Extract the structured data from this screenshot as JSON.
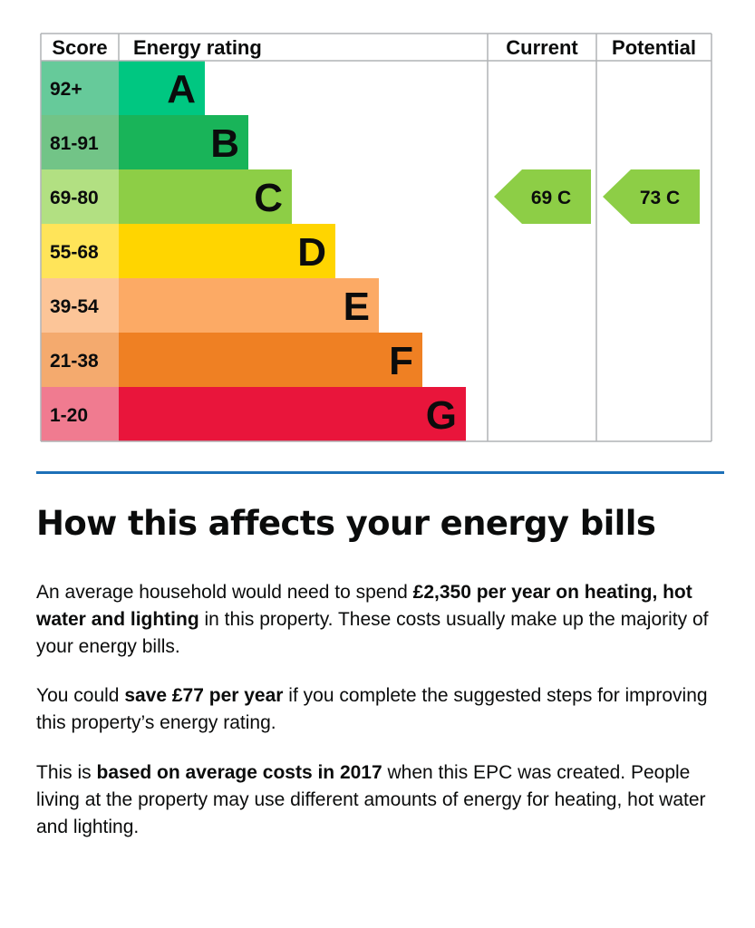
{
  "chart_data": {
    "type": "bar",
    "title": "",
    "headers": {
      "score": "Score",
      "rating": "Energy rating",
      "current": "Current",
      "potential": "Potential"
    },
    "bands": [
      {
        "score": "92+",
        "letter": "A",
        "band_color": "#00c781",
        "score_color": "#66ca9a",
        "letter_color": "#0b0c0c",
        "bar_value": 1
      },
      {
        "score": "81-91",
        "letter": "B",
        "band_color": "#19b459",
        "score_color": "#72c487",
        "letter_color": "#0b0c0c",
        "bar_value": 2
      },
      {
        "score": "69-80",
        "letter": "C",
        "band_color": "#8dce46",
        "score_color": "#b2e082",
        "letter_color": "#0b0c0c",
        "bar_value": 3
      },
      {
        "score": "55-68",
        "letter": "D",
        "band_color": "#ffd500",
        "score_color": "#ffe459",
        "letter_color": "#0b0c0c",
        "bar_value": 4
      },
      {
        "score": "39-54",
        "letter": "E",
        "band_color": "#fcaa65",
        "score_color": "#fcc598",
        "letter_color": "#0b0c0c",
        "bar_value": 5
      },
      {
        "score": "21-38",
        "letter": "F",
        "band_color": "#ef8023",
        "score_color": "#f4aa6e",
        "letter_color": "#0b0c0c",
        "bar_value": 6
      },
      {
        "score": "1-20",
        "letter": "G",
        "band_color": "#e9153b",
        "score_color": "#f07b90",
        "letter_color": "#0b0c0c",
        "bar_value": 7
      }
    ],
    "current": {
      "value": 69,
      "band": "C",
      "label": "69  C",
      "color": "#8dce46"
    },
    "potential": {
      "value": 73,
      "band": "C",
      "label": "73  C",
      "color": "#8dce46"
    },
    "grid_color": "#b1b4b6"
  },
  "section": {
    "heading": "How this affects your energy bills",
    "p1": [
      {
        "t": "An average household would need to spend "
      },
      {
        "t": "£2,350 per year on heating, hot water and lighting",
        "b": true
      },
      {
        "t": " in this property. These costs usually make up the majority of your energy bills."
      }
    ],
    "p2": [
      {
        "t": "You could "
      },
      {
        "t": "save £77 per year",
        "b": true
      },
      {
        "t": " if you complete the suggested steps for improving this property’s energy rating."
      }
    ],
    "p3": [
      {
        "t": "This is "
      },
      {
        "t": "based on average costs in 2017",
        "b": true
      },
      {
        "t": " when this EPC was created. People living at the property may use different amounts of energy for heating, hot water and lighting."
      }
    ]
  }
}
